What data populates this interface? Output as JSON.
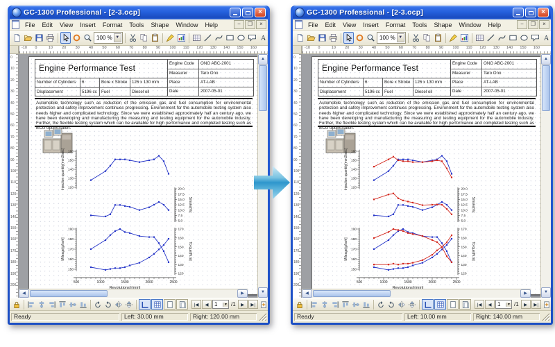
{
  "shared": {
    "window_title": "GC-1300 Professional - [2-3.ocp]",
    "status_ready": "Ready",
    "nav_page": "1",
    "nav_total": "/1"
  },
  "menu": {
    "items": [
      "File",
      "Edit",
      "View",
      "Insert",
      "Format",
      "Tools",
      "Shape",
      "Window",
      "Help"
    ]
  },
  "toolbar": {
    "zoom_value": "100 %",
    "icons": [
      "new",
      "open",
      "save",
      "print",
      "sep",
      "select",
      "refresh",
      "zoom",
      "zoombox",
      "sep",
      "cut",
      "copy",
      "paste",
      "sep",
      "brush",
      "chart",
      "sep",
      "table",
      "line",
      "curve",
      "rect",
      "ellipse",
      "callout",
      "text",
      "image",
      "sep",
      "pen-color",
      "fill-color"
    ]
  },
  "bottombar": {
    "icons": [
      "lock",
      "sep",
      "align-left",
      "align-center",
      "align-right",
      "align-top",
      "align-middle",
      "align-bottom",
      "sep",
      "rotate-left",
      "rotate-right",
      "flip-h",
      "flip-v",
      "sep"
    ],
    "view_toggles": [
      {
        "name": "view-snap",
        "pressed": true
      },
      {
        "name": "view-grid",
        "pressed": true
      },
      {
        "name": "view-page",
        "pressed": false
      },
      {
        "name": "view-margins",
        "pressed": false
      }
    ],
    "trailing_icons": [
      "page-add",
      "pointer-hand"
    ]
  },
  "rulers": {
    "horizontal": [
      "-10",
      "0",
      "10",
      "20",
      "30",
      "40",
      "50",
      "60",
      "70",
      "80",
      "90",
      "100",
      "110",
      "120",
      "130",
      "140",
      "150",
      "160"
    ],
    "vertical": [
      "0",
      "10",
      "20",
      "30",
      "40",
      "50",
      "60",
      "70",
      "80",
      "90",
      "100",
      "110",
      "120",
      "130",
      "140",
      "150",
      "160",
      "170",
      "180",
      "190",
      "200"
    ]
  },
  "windows": [
    {
      "name": "before-window",
      "status_left": "Left:  30.00 mm",
      "status_right": "Right:  120.00 mm",
      "series_groups": [
        "before"
      ]
    },
    {
      "name": "after-window",
      "status_left": "Left:  10.00 mm",
      "status_right": "Right:  140.00 mm",
      "series_groups": [
        "before",
        "after"
      ]
    }
  ],
  "document": {
    "title": "Engine Performance Test",
    "info_table": [
      [
        "Engine Code",
        "ONO ABC-2001"
      ],
      [
        "Measurer",
        "Taro Ono"
      ],
      [
        "Place",
        "AT-LAB"
      ],
      [
        "Date",
        "2007-05-01"
      ]
    ],
    "spec_table": [
      [
        "Number of Cylinders",
        "6",
        "Bore x Stroke",
        "126 x 130 mm"
      ],
      [
        "Displacement",
        "5196 cc",
        "Fuel",
        "Diesel oil"
      ]
    ],
    "paragraph": "Automobile technology such as reduction of the emission gas and fuel consumption for environmental protection and safety improvement continues progressing.  Environment for the automobile testing system also needs higher and complicated technology.  Since we were established approximately half an century ago, we have been developing and manufacturing the measuring and testing equipment for the automobile industry.  Further, the flexible testing system which can be available for high performance and completed testing such as ECU optimization."
  },
  "colors": {
    "series_before": "#2535c8",
    "series_after": "#d42a20",
    "titlebar": "#2560dc",
    "arrow": "#3ba3d8"
  },
  "chart_data": [
    {
      "type": "line",
      "x_label": "Revolutions[r/min]",
      "x_range": [
        500,
        2500
      ],
      "x_ticks": [
        500,
        1000,
        1500,
        2000,
        2500
      ],
      "x": [
        800,
        1100,
        1200,
        1300,
        1400,
        1500,
        1600,
        1800,
        2000,
        2100,
        2200,
        2300,
        2400
      ],
      "left_axis": {
        "label": "Injection quantity[mm3/sec]",
        "range": [
          120,
          160
        ],
        "ticks": [
          "160",
          "150",
          "140",
          "130",
          "120"
        ]
      },
      "right_axis": {
        "label": "Smoke[%]",
        "range": [
          5,
          20
        ],
        "ticks": [
          "20.0",
          "17.5",
          "15.0",
          "12.5",
          "10.0",
          "7.5",
          "5.0"
        ]
      },
      "series": [
        {
          "name": "injection-quantity-before",
          "group": "before",
          "axis": "left",
          "color": "#2535c8",
          "values": [
            128,
            138,
            144,
            151,
            151,
            151,
            150,
            148,
            150,
            151,
            155,
            149,
            135
          ]
        },
        {
          "name": "smoke-before",
          "group": "before",
          "axis": "right",
          "color": "#2535c8",
          "values": [
            7.5,
            7.0,
            8.0,
            12.4,
            12.4,
            11.9,
            11.5,
            10.0,
            11.3,
            12.5,
            13.8,
            12.5,
            10.0
          ]
        },
        {
          "name": "injection-quantity-after",
          "group": "after",
          "axis": "left",
          "color": "#d42a20",
          "values": [
            143,
            151,
            154,
            150,
            149,
            149,
            148,
            148,
            149,
            150,
            149,
            141,
            131
          ]
        },
        {
          "name": "smoke-after",
          "group": "after",
          "axis": "right",
          "color": "#d42a20",
          "values": [
            15.0,
            17.3,
            17.8,
            15.5,
            14.5,
            14.0,
            13.5,
            12.3,
            12.5,
            12.6,
            12.5,
            10.5,
            8.0
          ]
        }
      ]
    },
    {
      "type": "line",
      "x_label": "Revolutions[r/min]",
      "x_range": [
        500,
        2500
      ],
      "x_ticks": [
        500,
        1000,
        1500,
        2000,
        2500
      ],
      "x": [
        800,
        1100,
        1200,
        1300,
        1400,
        1500,
        1600,
        1800,
        2000,
        2100,
        2200,
        2300,
        2400
      ],
      "left_axis": {
        "label": "Mileage[g/kwh]",
        "range": [
          150,
          190
        ],
        "ticks": [
          "190",
          "180",
          "170",
          "160",
          "150"
        ]
      },
      "right_axis": {
        "label": "Torque[N.m]",
        "range": [
          120,
          170
        ],
        "ticks": [
          "170",
          "160",
          "150",
          "140",
          "130",
          "120"
        ]
      },
      "series": [
        {
          "name": "mileage-before",
          "group": "before",
          "axis": "left",
          "color": "#2535c8",
          "values": [
            170,
            179,
            184,
            188,
            190,
            187,
            186,
            183,
            182,
            182,
            176,
            168,
            157
          ]
        },
        {
          "name": "torque-before",
          "group": "before",
          "axis": "right",
          "color": "#2535c8",
          "values": [
            127,
            124,
            125,
            126,
            126,
            127,
            129,
            132,
            138,
            142,
            147,
            152,
            159
          ]
        },
        {
          "name": "mileage-after",
          "group": "after",
          "axis": "left",
          "color": "#d42a20",
          "values": [
            181,
            187,
            190,
            189,
            188,
            186,
            185,
            183,
            179,
            177,
            172,
            163,
            157
          ]
        },
        {
          "name": "torque-after",
          "group": "after",
          "axis": "right",
          "color": "#d42a20",
          "values": [
            130,
            130,
            131,
            130,
            131,
            131,
            132,
            135,
            141,
            146,
            150,
            155,
            163
          ]
        }
      ]
    }
  ]
}
